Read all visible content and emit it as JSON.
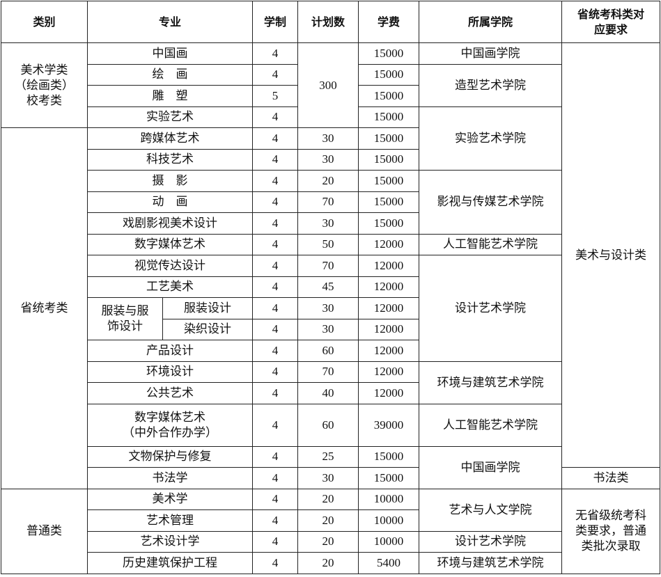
{
  "headers": [
    "类别",
    "专业",
    "学制",
    "计划数",
    "学费",
    "所属学院",
    "省统考科类对\n应要求"
  ],
  "categories": [
    "美术学类\n（绘画类）\n校考类",
    "省统考类",
    "普通类"
  ],
  "merged_plan": "300",
  "rows": [
    {
      "major": "中国画",
      "years": "4",
      "fee": "15000"
    },
    {
      "major": "绘　画",
      "years": "4",
      "fee": "15000"
    },
    {
      "major": "雕　塑",
      "years": "5",
      "fee": "15000"
    },
    {
      "major": "实验艺术",
      "years": "4",
      "fee": "15000"
    },
    {
      "major": "跨媒体艺术",
      "years": "4",
      "plan": "30",
      "fee": "15000"
    },
    {
      "major": "科技艺术",
      "years": "4",
      "plan": "30",
      "fee": "15000"
    },
    {
      "major": "摄　影",
      "years": "4",
      "plan": "20",
      "fee": "15000"
    },
    {
      "major": "动　画",
      "years": "4",
      "plan": "70",
      "fee": "15000"
    },
    {
      "major": "戏剧影视美术设计",
      "years": "4",
      "plan": "30",
      "fee": "15000"
    },
    {
      "major": "数字媒体艺术",
      "years": "4",
      "plan": "50",
      "fee": "12000"
    },
    {
      "major": "视觉传达设计",
      "years": "4",
      "plan": "70",
      "fee": "12000"
    },
    {
      "major": "工艺美术",
      "years": "4",
      "plan": "45",
      "fee": "12000"
    },
    {
      "group": "服装与服\n饰设计",
      "major": "服装设计",
      "years": "4",
      "plan": "30",
      "fee": "12000"
    },
    {
      "major": "染织设计",
      "years": "4",
      "plan": "30",
      "fee": "12000"
    },
    {
      "major": "产品设计",
      "years": "4",
      "plan": "60",
      "fee": "12000"
    },
    {
      "major": "环境设计",
      "years": "4",
      "plan": "70",
      "fee": "12000"
    },
    {
      "major": "公共艺术",
      "years": "4",
      "plan": "40",
      "fee": "12000"
    },
    {
      "major": "数字媒体艺术\n（中外合作办学）",
      "years": "4",
      "plan": "60",
      "fee": "39000"
    },
    {
      "major": "文物保护与修复",
      "years": "4",
      "plan": "25",
      "fee": "15000"
    },
    {
      "major": "书法学",
      "years": "4",
      "plan": "30",
      "fee": "15000"
    },
    {
      "major": "美术学",
      "years": "4",
      "plan": "20",
      "fee": "10000"
    },
    {
      "major": "艺术管理",
      "years": "4",
      "plan": "20",
      "fee": "10000"
    },
    {
      "major": "艺术设计学",
      "years": "4",
      "plan": "20",
      "fee": "10000"
    },
    {
      "major": "历史建筑保护工程",
      "years": "4",
      "plan": "20",
      "fee": "5400"
    }
  ],
  "colleges": [
    "中国画学院",
    "造型艺术学院",
    "实验艺术学院",
    "影视与传媒艺术学院",
    "人工智能艺术学院",
    "设计艺术学院",
    "环境与建筑艺术学院",
    "人工智能艺术学院",
    "中国画学院",
    "艺术与人文学院",
    "设计艺术学院",
    "环境与建筑艺术学院"
  ],
  "requirements": [
    "美术与设计类",
    "书法类",
    "无省级统考科\n类要求，普通\n类批次录取"
  ]
}
